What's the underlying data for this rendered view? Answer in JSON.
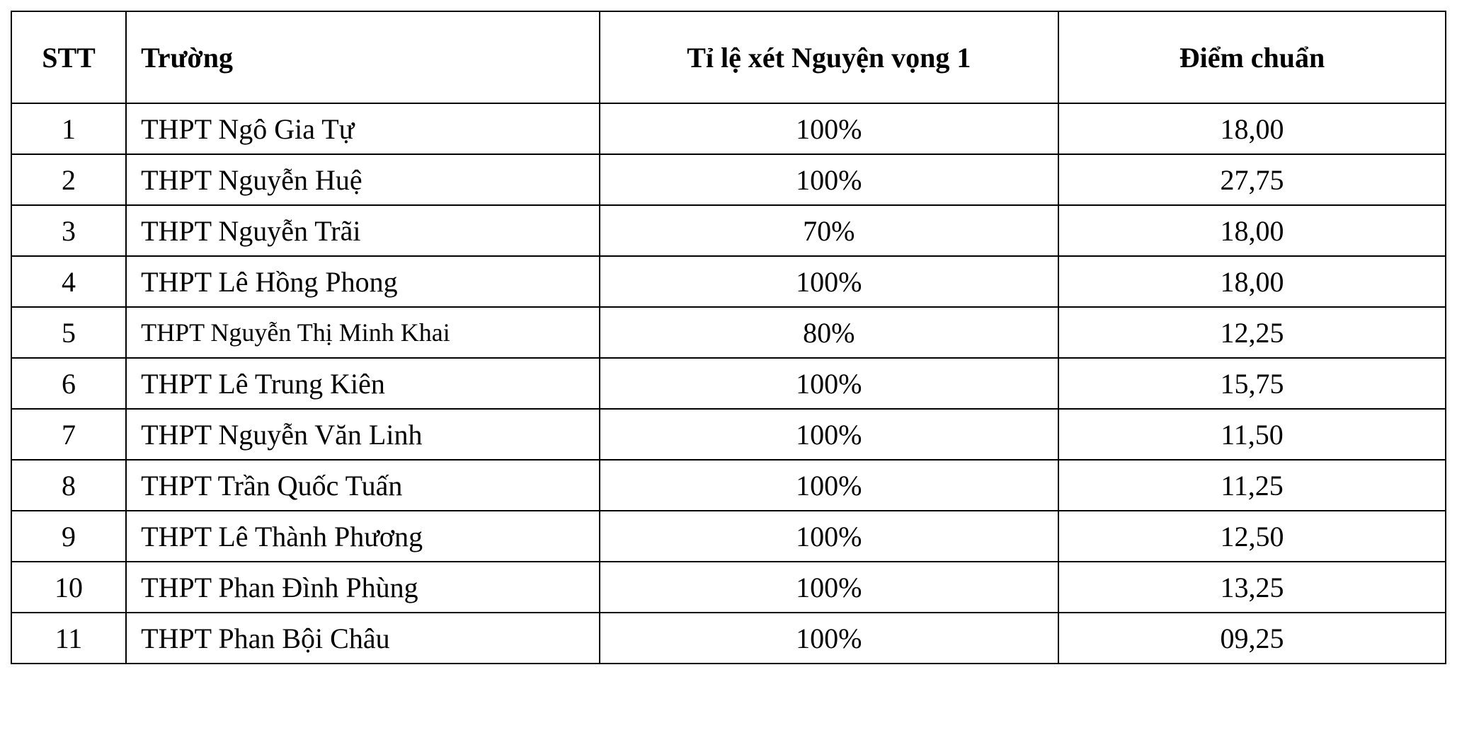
{
  "table": {
    "type": "table",
    "background_color": "#ffffff",
    "border_color": "#000000",
    "border_width": 2,
    "font_family": "Times New Roman",
    "header_font_weight": "bold",
    "header_fontsize": 40,
    "body_fontsize": 40,
    "text_color": "#000000",
    "columns": [
      {
        "key": "stt",
        "label": "STT",
        "width_pct": 8,
        "align": "center"
      },
      {
        "key": "school",
        "label": "Trường",
        "width_pct": 33,
        "align": "left"
      },
      {
        "key": "rate",
        "label": "Tỉ lệ xét Nguyện vọng 1",
        "width_pct": 32,
        "align": "center"
      },
      {
        "key": "score",
        "label": "Điểm chuẩn",
        "width_pct": 27,
        "align": "center"
      }
    ],
    "rows": [
      {
        "stt": "1",
        "school": "THPT Ngô Gia Tự",
        "rate": "100%",
        "score": "18,00",
        "small": false
      },
      {
        "stt": "2",
        "school": "THPT Nguyễn Huệ",
        "rate": "100%",
        "score": "27,75",
        "small": false
      },
      {
        "stt": "3",
        "school": "THPT Nguyễn Trãi",
        "rate": "70%",
        "score": "18,00",
        "small": false
      },
      {
        "stt": "4",
        "school": "THPT Lê Hồng Phong",
        "rate": "100%",
        "score": "18,00",
        "small": false
      },
      {
        "stt": "5",
        "school": "THPT Nguyễn Thị Minh Khai",
        "rate": "80%",
        "score": "12,25",
        "small": true
      },
      {
        "stt": "6",
        "school": "THPT Lê Trung Kiên",
        "rate": "100%",
        "score": "15,75",
        "small": false
      },
      {
        "stt": "7",
        "school": "THPT Nguyễn Văn Linh",
        "rate": "100%",
        "score": "11,50",
        "small": false
      },
      {
        "stt": "8",
        "school": "THPT Trần Quốc Tuấn",
        "rate": "100%",
        "score": "11,25",
        "small": false
      },
      {
        "stt": "9",
        "school": "THPT Lê Thành Phương",
        "rate": "100%",
        "score": "12,50",
        "small": false
      },
      {
        "stt": "10",
        "school": "THPT Phan Đình Phùng",
        "rate": "100%",
        "score": "13,25",
        "small": false
      },
      {
        "stt": "11",
        "school": "THPT Phan Bội Châu",
        "rate": "100%",
        "score": "09,25",
        "small": false
      }
    ]
  }
}
